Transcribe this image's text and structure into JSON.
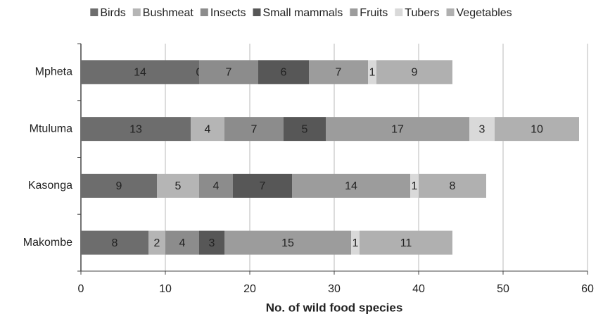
{
  "chart_data": {
    "type": "stacked_barh",
    "xlabel": "No. of wild food species",
    "categories": [
      "Mpheta",
      "Mtuluma",
      "Kasonga",
      "Makombe"
    ],
    "series": [
      {
        "name": "Birds",
        "color": "#6d6d6d",
        "values": [
          14,
          13,
          9,
          8
        ]
      },
      {
        "name": "Bushmeat",
        "color": "#b5b5b5",
        "values": [
          0,
          4,
          5,
          2
        ]
      },
      {
        "name": "Insects",
        "color": "#8c8c8c",
        "values": [
          7,
          7,
          4,
          4
        ]
      },
      {
        "name": "Small mammals",
        "color": "#575757",
        "values": [
          6,
          5,
          7,
          3
        ]
      },
      {
        "name": "Fruits",
        "color": "#9c9c9c",
        "values": [
          7,
          17,
          14,
          15
        ]
      },
      {
        "name": "Tubers",
        "color": "#d9d9d9",
        "values": [
          1,
          3,
          1,
          1
        ]
      },
      {
        "name": "Vegetables",
        "color": "#b0b0b0",
        "values": [
          9,
          10,
          8,
          11
        ]
      }
    ],
    "xlim": [
      0,
      60
    ],
    "xticks": [
      0,
      10,
      20,
      30,
      40,
      50,
      60
    ],
    "grid": true,
    "legend": "top"
  }
}
